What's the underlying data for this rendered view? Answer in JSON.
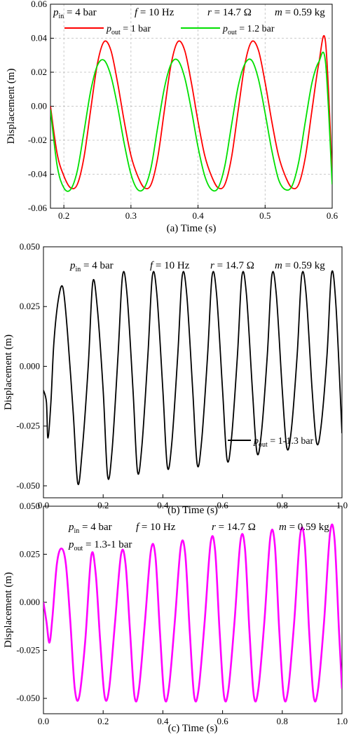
{
  "chart_data": [
    {
      "panel": "a",
      "type": "line",
      "xlabel": "(a) Time (s)",
      "ylabel": "Displacement (m)",
      "xlim": [
        0.18,
        0.6
      ],
      "ylim": [
        -0.06,
        0.06
      ],
      "xticks": [
        "0.2",
        "0.3",
        "0.4",
        "0.5",
        "0.6"
      ],
      "yticks": [
        "-0.06",
        "-0.04",
        "-0.02",
        "0.00",
        "0.02",
        "0.04",
        "0.06"
      ],
      "grid": true,
      "annotations": [
        {
          "main": "p",
          "sub": "in",
          "rest": " = 4 bar"
        },
        {
          "main": "f",
          "rest": " = 10 Hz"
        },
        {
          "main": "r",
          "rest": " = 14.7 Ω"
        },
        {
          "main": "m",
          "rest": " = 0.59 kg"
        }
      ],
      "legend_position": "top",
      "series": [
        {
          "name": "= 1 bar",
          "name_prefix": "p",
          "name_sub": "out",
          "color": "#ff0000",
          "x": [
            0.18,
            0.19,
            0.2,
            0.21,
            0.22,
            0.23,
            0.24,
            0.25,
            0.26,
            0.27,
            0.28,
            0.29,
            0.3,
            0.31,
            0.32,
            0.33,
            0.34,
            0.35,
            0.36,
            0.37,
            0.38,
            0.39,
            0.4,
            0.41,
            0.42,
            0.43,
            0.44,
            0.45,
            0.46,
            0.47,
            0.48,
            0.49,
            0.5,
            0.51,
            0.52,
            0.53,
            0.54,
            0.55,
            0.56,
            0.57,
            0.58,
            0.59,
            0.6
          ],
          "y": [
            0.0,
            -0.028,
            -0.041,
            -0.048,
            -0.046,
            -0.03,
            -0.002,
            0.025,
            0.038,
            0.033,
            0.014,
            -0.009,
            -0.029,
            -0.041,
            -0.048,
            -0.046,
            -0.03,
            -0.002,
            0.025,
            0.038,
            0.033,
            0.014,
            -0.009,
            -0.029,
            -0.041,
            -0.048,
            -0.046,
            -0.03,
            -0.002,
            0.025,
            0.038,
            0.033,
            0.014,
            -0.009,
            -0.029,
            -0.041,
            -0.048,
            -0.046,
            -0.03,
            -0.002,
            0.025,
            0.038,
            -0.04
          ]
        },
        {
          "name": "= 1.2 bar",
          "name_prefix": "p",
          "name_sub": "out",
          "color": "#00e000",
          "x": [
            0.18,
            0.19,
            0.2,
            0.21,
            0.22,
            0.23,
            0.24,
            0.25,
            0.26,
            0.27,
            0.28,
            0.29,
            0.3,
            0.31,
            0.32,
            0.33,
            0.34,
            0.35,
            0.36,
            0.37,
            0.38,
            0.39,
            0.4,
            0.41,
            0.42,
            0.43,
            0.44,
            0.45,
            0.46,
            0.47,
            0.48,
            0.49,
            0.5,
            0.51,
            0.52,
            0.53,
            0.54,
            0.55,
            0.56,
            0.57,
            0.58,
            0.59,
            0.6
          ],
          "y": [
            -0.002,
            -0.035,
            -0.048,
            -0.049,
            -0.038,
            -0.015,
            0.009,
            0.024,
            0.027,
            0.018,
            0.0,
            -0.022,
            -0.04,
            -0.049,
            -0.048,
            -0.036,
            -0.012,
            0.011,
            0.025,
            0.027,
            0.017,
            -0.002,
            -0.024,
            -0.041,
            -0.049,
            -0.048,
            -0.035,
            -0.011,
            0.012,
            0.025,
            0.027,
            0.016,
            -0.004,
            -0.026,
            -0.043,
            -0.049,
            -0.047,
            -0.033,
            -0.009,
            0.014,
            0.026,
            0.026,
            -0.046
          ]
        }
      ]
    },
    {
      "panel": "b",
      "type": "line",
      "xlabel": "(b) Time (s)",
      "ylabel": "Displacement (m)",
      "xlim": [
        0.0,
        1.0
      ],
      "ylim": [
        -0.055,
        0.05
      ],
      "xticks": [
        "0.0",
        "0.2",
        "0.4",
        "0.6",
        "0.8",
        "1.0"
      ],
      "yticks": [
        "-0.050",
        "-0.025",
        "0.000",
        "0.025",
        "0.050"
      ],
      "grid": false,
      "annotations": [
        {
          "main": "p",
          "sub": "in",
          "rest": " = 4 bar"
        },
        {
          "main": "f",
          "rest": " = 10 Hz"
        },
        {
          "main": "r",
          "rest": " = 14.7 Ω"
        },
        {
          "main": "m",
          "rest": " = 0.59 kg"
        }
      ],
      "legend_position": "bottom-right",
      "series": [
        {
          "name": "= 1-1.3 bar",
          "name_prefix": "p",
          "name_sub": "out",
          "color": "#000000",
          "x": [
            0.0,
            0.01,
            0.015,
            0.025,
            0.035,
            0.05,
            0.065,
            0.08,
            0.1,
            0.115,
            0.13,
            0.15,
            0.165,
            0.18,
            0.2,
            0.215,
            0.23,
            0.25,
            0.265,
            0.28,
            0.3,
            0.315,
            0.33,
            0.35,
            0.365,
            0.38,
            0.4,
            0.415,
            0.43,
            0.45,
            0.465,
            0.48,
            0.5,
            0.515,
            0.53,
            0.55,
            0.565,
            0.58,
            0.6,
            0.615,
            0.63,
            0.65,
            0.665,
            0.68,
            0.7,
            0.715,
            0.73,
            0.75,
            0.765,
            0.78,
            0.8,
            0.815,
            0.83,
            0.85,
            0.865,
            0.88,
            0.9,
            0.915,
            0.93,
            0.95,
            0.965,
            0.98,
            1.0
          ],
          "y": [
            -0.01,
            -0.015,
            -0.03,
            -0.015,
            0.01,
            0.028,
            0.033,
            0.015,
            -0.02,
            -0.049,
            -0.035,
            0.0,
            0.035,
            0.025,
            -0.01,
            -0.046,
            -0.035,
            0.005,
            0.038,
            0.03,
            -0.01,
            -0.044,
            -0.033,
            0.005,
            0.038,
            0.03,
            -0.01,
            -0.042,
            -0.032,
            0.005,
            0.038,
            0.03,
            -0.01,
            -0.041,
            -0.031,
            0.005,
            0.038,
            0.03,
            -0.01,
            -0.039,
            -0.03,
            0.005,
            0.038,
            0.03,
            -0.01,
            -0.036,
            -0.028,
            0.005,
            0.038,
            0.03,
            -0.01,
            -0.034,
            -0.027,
            0.005,
            0.038,
            0.03,
            -0.01,
            -0.032,
            -0.025,
            0.005,
            0.039,
            0.025,
            -0.028
          ]
        }
      ]
    },
    {
      "panel": "c",
      "type": "line",
      "xlabel": "(c) Time (s)",
      "ylabel": "Displacement (m)",
      "xlim": [
        0.0,
        1.0
      ],
      "ylim": [
        -0.058,
        0.05
      ],
      "xticks": [
        "0.0",
        "0.2",
        "0.4",
        "0.6",
        "0.8",
        "1.0"
      ],
      "yticks": [
        "-0.050",
        "-0.025",
        "0.000",
        "0.025",
        "0.050"
      ],
      "grid": false,
      "annotations": [
        {
          "main": "p",
          "sub": "in",
          "rest": " = 4 bar"
        },
        {
          "main": "f",
          "rest": " = 10 Hz"
        },
        {
          "main": "r",
          "rest": " = 14.7 Ω"
        },
        {
          "main": "m",
          "rest": " = 0.59 kg"
        },
        {
          "main": "p",
          "sub": "out",
          "rest": " = 1.3-1 bar"
        }
      ],
      "series": [
        {
          "name": "",
          "color": "#ff00ff",
          "x": [
            0.0,
            0.01,
            0.02,
            0.03,
            0.045,
            0.06,
            0.075,
            0.09,
            0.105,
            0.12,
            0.14,
            0.16,
            0.175,
            0.19,
            0.205,
            0.22,
            0.24,
            0.26,
            0.275,
            0.29,
            0.305,
            0.32,
            0.34,
            0.36,
            0.375,
            0.39,
            0.405,
            0.42,
            0.44,
            0.46,
            0.475,
            0.49,
            0.505,
            0.52,
            0.54,
            0.56,
            0.575,
            0.59,
            0.605,
            0.62,
            0.64,
            0.66,
            0.675,
            0.69,
            0.705,
            0.72,
            0.74,
            0.76,
            0.775,
            0.79,
            0.805,
            0.82,
            0.84,
            0.86,
            0.875,
            0.89,
            0.905,
            0.92,
            0.94,
            0.96,
            0.975,
            0.99,
            1.0
          ],
          "y": [
            0.0,
            -0.01,
            -0.021,
            -0.008,
            0.02,
            0.028,
            0.02,
            -0.01,
            -0.045,
            -0.049,
            -0.02,
            0.024,
            0.015,
            -0.02,
            -0.049,
            -0.045,
            -0.01,
            0.025,
            0.02,
            -0.015,
            -0.049,
            -0.045,
            -0.01,
            0.027,
            0.024,
            -0.015,
            -0.049,
            -0.045,
            -0.01,
            0.029,
            0.025,
            -0.015,
            -0.049,
            -0.045,
            -0.01,
            0.031,
            0.027,
            -0.015,
            -0.049,
            -0.045,
            -0.01,
            0.032,
            0.028,
            -0.015,
            -0.049,
            -0.045,
            -0.01,
            0.034,
            0.03,
            -0.015,
            -0.049,
            -0.045,
            -0.01,
            0.035,
            0.031,
            -0.015,
            -0.049,
            -0.045,
            -0.01,
            0.036,
            0.033,
            -0.015,
            -0.045
          ]
        }
      ]
    }
  ]
}
